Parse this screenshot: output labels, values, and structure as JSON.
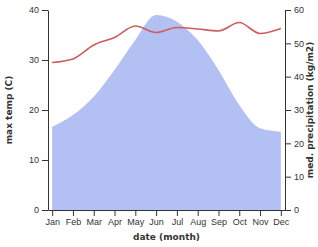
{
  "chart_data": {
    "type": "line",
    "x_label": "date (month)",
    "y_label": "max temp (C)",
    "y2_label": "med. precipitation (kg/m2)",
    "categories": [
      "Jan",
      "Feb",
      "Mar",
      "Apr",
      "May",
      "Jun",
      "Jul",
      "Aug",
      "Sep",
      "Oct",
      "Nov",
      "Dec"
    ],
    "series": [
      {
        "type": "area",
        "axis": "y2",
        "color": "#b3c0f3",
        "values": [
          25,
          28.5,
          34,
          42,
          51,
          58.5,
          56.5,
          51,
          42,
          31.5,
          24.5,
          23.5
        ]
      },
      {
        "type": "line",
        "color": "#cd5c5c",
        "values": [
          29.5,
          30.2,
          33,
          34.5,
          36.8,
          35.5,
          36.5,
          36.2,
          35.8,
          37.5,
          35.3,
          36.3
        ]
      }
    ],
    "ylim": [
      0,
      40
    ],
    "yticks": [
      0,
      10,
      20,
      30,
      40
    ],
    "y2lim": [
      0,
      60
    ],
    "y2ticks": [
      0,
      10,
      20,
      30,
      40,
      50,
      60
    ],
    "grid": false
  }
}
